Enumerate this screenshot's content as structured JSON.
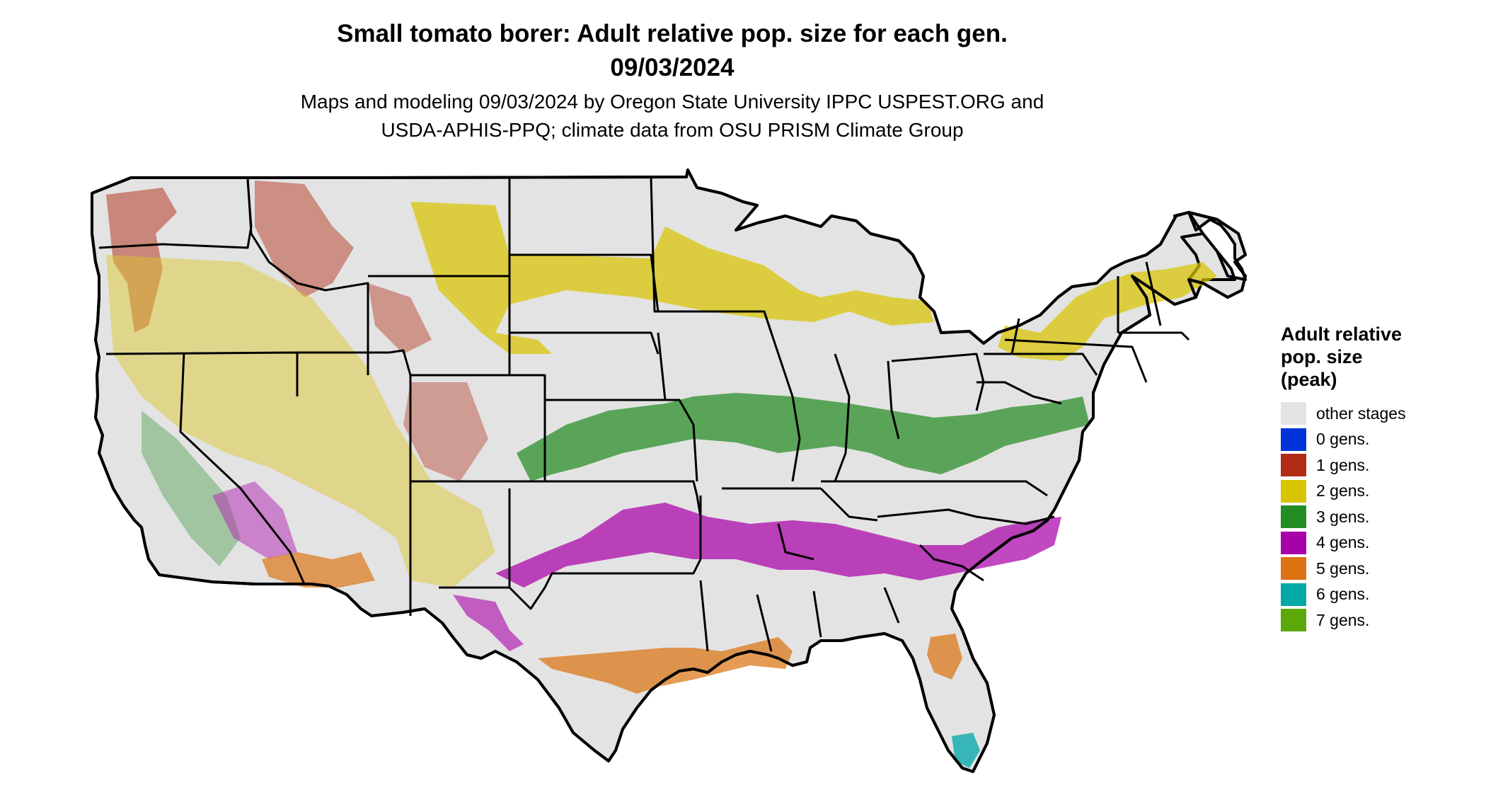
{
  "title": {
    "line1": "Small tomato borer: Adult relative pop. size for each gen.",
    "line2": "09/03/2024"
  },
  "subtitle": {
    "line1": "Maps and modeling 09/03/2024 by Oregon State University IPPC USPEST.ORG and",
    "line2": "USDA-APHIS-PPQ; climate data from OSU PRISM Climate Group"
  },
  "legend": {
    "title_line1": "Adult relative",
    "title_line2": "pop. size",
    "title_line3": "(peak)",
    "items": [
      {
        "label": "other stages",
        "color": "#e3e3e3"
      },
      {
        "label": "0 gens.",
        "color": "#0033d9"
      },
      {
        "label": "1 gens.",
        "color": "#b22b14"
      },
      {
        "label": "2 gens.",
        "color": "#d9c400"
      },
      {
        "label": "3 gens.",
        "color": "#238c23"
      },
      {
        "label": "4 gens.",
        "color": "#a800a8"
      },
      {
        "label": "5 gens.",
        "color": "#db7312"
      },
      {
        "label": "6 gens.",
        "color": "#00a8a8"
      },
      {
        "label": "7 gens.",
        "color": "#5aa80a"
      }
    ]
  },
  "map": {
    "region": "conterminous United States",
    "background_color": "#e3e3e3",
    "border_color": "#000000"
  }
}
